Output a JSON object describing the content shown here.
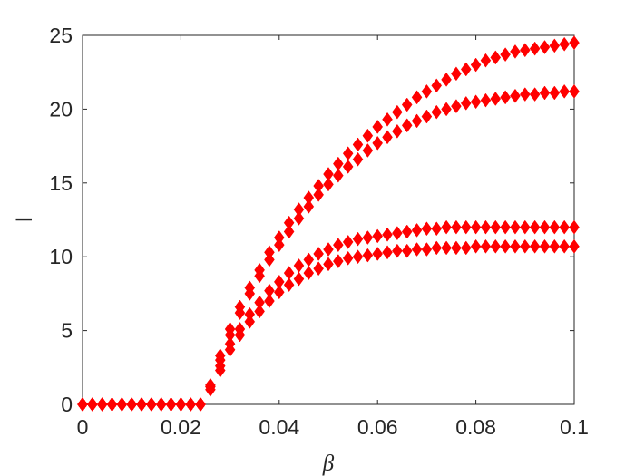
{
  "chart_data": {
    "type": "scatter",
    "title": "",
    "xlabel": "β",
    "ylabel": "I",
    "xlim": [
      0,
      0.1
    ],
    "ylim": [
      0,
      25
    ],
    "xticks": [
      0,
      0.02,
      0.04,
      0.06,
      0.08,
      0.1
    ],
    "xtick_labels": [
      "0",
      "0.02",
      "0.04",
      "0.06",
      "0.08",
      "0.1"
    ],
    "yticks": [
      0,
      5,
      10,
      15,
      20,
      25
    ],
    "ytick_labels": [
      "0",
      "5",
      "10",
      "15",
      "20",
      "25"
    ],
    "grid": false,
    "marker": "diamond",
    "marker_color": "#ff0000",
    "x": [
      0,
      0.002,
      0.004,
      0.006,
      0.008,
      0.01,
      0.012,
      0.014,
      0.016,
      0.018,
      0.02,
      0.022,
      0.024,
      0.026,
      0.028,
      0.03,
      0.032,
      0.034,
      0.036,
      0.038,
      0.04,
      0.042,
      0.044,
      0.046,
      0.048,
      0.05,
      0.052,
      0.054,
      0.056,
      0.058,
      0.06,
      0.062,
      0.064,
      0.066,
      0.068,
      0.07,
      0.072,
      0.074,
      0.076,
      0.078,
      0.08,
      0.082,
      0.084,
      0.086,
      0.088,
      0.09,
      0.092,
      0.094,
      0.096,
      0.098,
      0.1
    ],
    "series": [
      {
        "values": [
          0,
          0,
          0,
          0,
          0,
          0,
          0,
          0,
          0,
          0,
          0,
          0,
          0,
          1.3,
          3.3,
          5.1,
          6.6,
          7.9,
          9.1,
          10.3,
          11.3,
          12.3,
          13.2,
          14.0,
          14.8,
          15.6,
          16.3,
          17.0,
          17.6,
          18.2,
          18.8,
          19.3,
          19.8,
          20.3,
          20.8,
          21.2,
          21.6,
          22.0,
          22.4,
          22.7,
          23.0,
          23.3,
          23.5,
          23.7,
          23.9,
          24.0,
          24.1,
          24.2,
          24.3,
          24.4,
          24.5
        ]
      },
      {
        "values": [
          0,
          0,
          0,
          0,
          0,
          0,
          0,
          0,
          0,
          0,
          0,
          0,
          0,
          1.2,
          3.0,
          4.7,
          6.2,
          7.5,
          8.7,
          9.8,
          10.8,
          11.7,
          12.6,
          13.4,
          14.2,
          14.9,
          15.5,
          16.1,
          16.6,
          17.2,
          17.7,
          18.1,
          18.5,
          18.9,
          19.2,
          19.5,
          19.8,
          20.0,
          20.2,
          20.4,
          20.5,
          20.6,
          20.7,
          20.8,
          20.9,
          21.0,
          21.0,
          21.1,
          21.1,
          21.2,
          21.2
        ]
      },
      {
        "values": [
          0,
          0,
          0,
          0,
          0,
          0,
          0,
          0,
          0,
          0,
          0,
          0,
          0,
          1.2,
          2.6,
          4.1,
          5.1,
          6.1,
          6.9,
          7.7,
          8.3,
          8.9,
          9.4,
          9.8,
          10.2,
          10.5,
          10.8,
          11.0,
          11.2,
          11.3,
          11.4,
          11.5,
          11.6,
          11.7,
          11.8,
          11.9,
          11.9,
          12.0,
          12.0,
          12.0,
          12.0,
          12.0,
          12.0,
          12.0,
          12.0,
          12.0,
          12.0,
          12.0,
          12.0,
          12.0,
          12.0
        ]
      },
      {
        "values": [
          0,
          0,
          0,
          0,
          0,
          0,
          0,
          0,
          0,
          0,
          0,
          0,
          0,
          1.0,
          2.3,
          3.7,
          4.7,
          5.6,
          6.3,
          7.0,
          7.6,
          8.1,
          8.5,
          8.9,
          9.2,
          9.5,
          9.7,
          9.9,
          10.0,
          10.1,
          10.2,
          10.3,
          10.4,
          10.4,
          10.5,
          10.5,
          10.6,
          10.6,
          10.6,
          10.6,
          10.7,
          10.7,
          10.7,
          10.7,
          10.7,
          10.7,
          10.7,
          10.7,
          10.7,
          10.7,
          10.7
        ]
      }
    ]
  }
}
